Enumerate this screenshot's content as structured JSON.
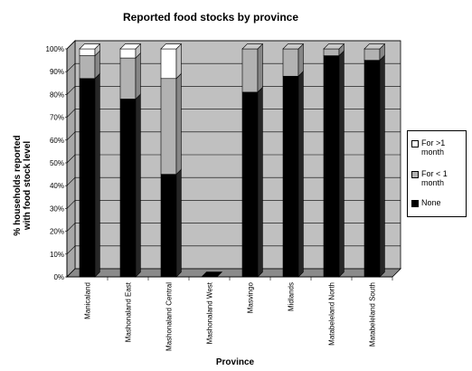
{
  "chart_data": {
    "type": "bar",
    "stacked": true,
    "three_d": true,
    "title": "Reported food stocks by province",
    "xlabel": "Province",
    "ylabel": "% households reported with food stock level",
    "ylim": [
      0,
      100
    ],
    "y_ticks": [
      "0%",
      "10%",
      "20%",
      "30%",
      "40%",
      "50%",
      "60%",
      "70%",
      "80%",
      "90%",
      "100%"
    ],
    "grid": true,
    "legend_position": "right",
    "categories": [
      "Manicaland",
      "Mashonaland East",
      "Mashonaland Central",
      "Mashonaland West",
      "Masvingo",
      "Midlands",
      "Matabeleland North",
      "Matabeleland South"
    ],
    "series": [
      {
        "name": "None",
        "color": "#000000",
        "values": [
          87,
          78,
          45,
          0,
          81,
          88,
          97,
          95
        ]
      },
      {
        "name": "For < 1 month",
        "color": "#b2b2b2",
        "values": [
          10,
          18,
          42,
          0,
          19,
          12,
          3,
          5
        ]
      },
      {
        "name": "For >1 month",
        "color": "#ffffff",
        "values": [
          3,
          4,
          13,
          0,
          0,
          0,
          0,
          0
        ]
      }
    ],
    "legend_order": [
      "For >1 month",
      "For < 1 month",
      "None"
    ]
  }
}
